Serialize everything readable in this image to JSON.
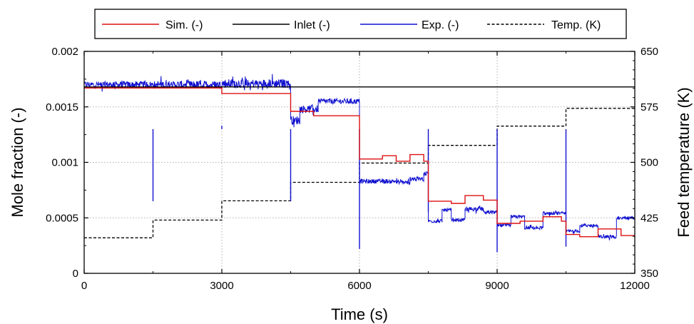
{
  "chart_data": {
    "type": "line",
    "xlabel": "Time (s)",
    "ylabel": "Mole fraction (-)",
    "y2label": "Feed temperature (K)",
    "xlim": [
      0,
      12000
    ],
    "ylim": [
      0,
      0.002
    ],
    "y2lim": [
      350,
      650
    ],
    "x_ticks": [
      0,
      3000,
      6000,
      9000,
      12000
    ],
    "x_tick_labels": [
      "0",
      "3000",
      "6000",
      "9000",
      "12000"
    ],
    "y_ticks": [
      0,
      0.0005,
      0.001,
      0.0015,
      0.002
    ],
    "y_tick_labels": [
      "0",
      "0.0005",
      "0.001",
      "0.0015",
      "0.002"
    ],
    "y2_ticks": [
      350,
      425,
      500,
      575,
      650
    ],
    "y2_tick_labels": [
      "350",
      "425",
      "500",
      "575",
      "650"
    ],
    "grid": true,
    "legend_position": "top-outside",
    "colors": {
      "sim": "#dd1111",
      "inlet": "#000000",
      "exp": "#1010d0",
      "temp": "#000000",
      "grid": "#b0b0b0"
    },
    "series": [
      {
        "name": "Sim. (-)",
        "axis": "left",
        "style": "solid",
        "step": true,
        "segments": [
          [
            0,
            1500,
            0.00167
          ],
          [
            1500,
            3000,
            0.00167
          ],
          [
            3000,
            4500,
            0.00162
          ],
          [
            4500,
            5000,
            0.00146
          ],
          [
            5000,
            6000,
            0.00142
          ],
          [
            6000,
            6500,
            0.00103
          ],
          [
            6500,
            6800,
            0.00106
          ],
          [
            6800,
            7100,
            0.00101
          ],
          [
            7100,
            7400,
            0.00107
          ],
          [
            7400,
            7500,
            0.00101
          ],
          [
            7500,
            8000,
            0.00065
          ],
          [
            8000,
            8300,
            0.00063
          ],
          [
            8300,
            8700,
            0.0007
          ],
          [
            8700,
            9000,
            0.00066
          ],
          [
            9000,
            9500,
            0.00045
          ],
          [
            9500,
            10000,
            0.00047
          ],
          [
            10000,
            10400,
            0.00051
          ],
          [
            10400,
            10500,
            0.00047
          ],
          [
            10500,
            10800,
            0.00035
          ],
          [
            10800,
            11200,
            0.00033
          ],
          [
            11200,
            11700,
            0.0004
          ],
          [
            11700,
            12000,
            0.00034
          ]
        ]
      },
      {
        "name": "Inlet (-)",
        "axis": "left",
        "style": "solid",
        "segments": [
          [
            0,
            4500,
            0.00168
          ],
          [
            4500,
            12000,
            0.00168
          ]
        ]
      },
      {
        "name": "Exp. (-)",
        "axis": "left",
        "style": "noisy",
        "segments": [
          [
            0,
            1500,
            0.0017,
            6e-05
          ],
          [
            1500,
            3000,
            0.0017,
            7e-05
          ],
          [
            3000,
            4500,
            0.00171,
            8e-05
          ],
          [
            4500,
            4700,
            0.00138,
            8e-05
          ],
          [
            4700,
            5100,
            0.00148,
            7e-05
          ],
          [
            5100,
            6000,
            0.00155,
            5e-05
          ],
          [
            6000,
            6400,
            0.00083,
            4e-05
          ],
          [
            6400,
            6800,
            0.00083,
            4e-05
          ],
          [
            6800,
            7100,
            0.00082,
            4e-05
          ],
          [
            7100,
            7400,
            0.00085,
            4e-05
          ],
          [
            7400,
            7500,
            0.0009,
            4e-05
          ],
          [
            7500,
            7800,
            0.00047,
            3e-05
          ],
          [
            7800,
            8000,
            0.00057,
            3e-05
          ],
          [
            8000,
            8300,
            0.00048,
            3e-05
          ],
          [
            8300,
            8700,
            0.00058,
            4e-05
          ],
          [
            8700,
            9000,
            0.00055,
            3e-05
          ],
          [
            9000,
            9300,
            0.00043,
            3e-05
          ],
          [
            9300,
            9600,
            0.00051,
            3e-05
          ],
          [
            9600,
            10000,
            0.00041,
            3e-05
          ],
          [
            10000,
            10500,
            0.00054,
            3e-05
          ],
          [
            10500,
            10800,
            0.00038,
            3e-05
          ],
          [
            10800,
            11200,
            0.00043,
            3e-05
          ],
          [
            11200,
            11600,
            0.00033,
            3e-05
          ],
          [
            11600,
            12000,
            0.0005,
            3e-05
          ]
        ],
        "spikes": [
          [
            1500,
            0.00065
          ],
          [
            3000,
            0.00133
          ],
          [
            4500,
            0.00065
          ],
          [
            6000,
            0.00022
          ],
          [
            7500,
            0.00055
          ],
          [
            9000,
            0.00019
          ],
          [
            10500,
            0.00024
          ]
        ]
      },
      {
        "name": "Temp. (K)",
        "axis": "right",
        "style": "dashed",
        "step": true,
        "segments": [
          [
            0,
            1500,
            398
          ],
          [
            1500,
            3000,
            422
          ],
          [
            3000,
            4500,
            448
          ],
          [
            4500,
            6000,
            473
          ],
          [
            6000,
            7500,
            499
          ],
          [
            7500,
            9000,
            523
          ],
          [
            9000,
            10500,
            549
          ],
          [
            10500,
            12000,
            573
          ]
        ]
      }
    ]
  }
}
